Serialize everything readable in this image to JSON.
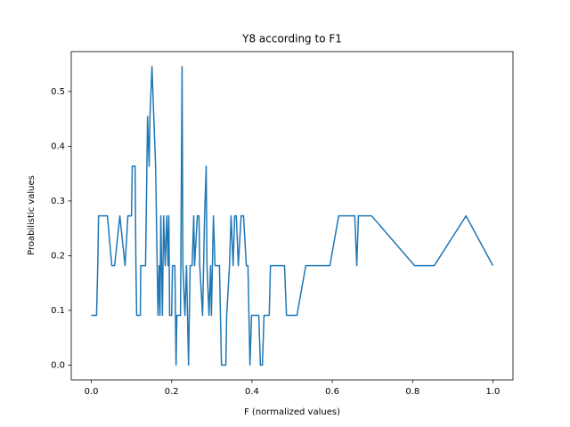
{
  "chart_data": {
    "type": "line",
    "title": "Y8 according to F1",
    "x_label": "F (normalized values)",
    "y_label": "Proabilistic values",
    "xlim": [
      -0.05,
      1.05
    ],
    "ylim": [
      -0.027,
      0.573
    ],
    "xticks": [
      {
        "value": 0,
        "label": "0.0"
      },
      0.2,
      0.4,
      0.6,
      0.8,
      {
        "value": 1,
        "label": "1.0"
      }
    ],
    "yticks": [
      {
        "value": 0,
        "label": "0.0"
      },
      0.1,
      0.2,
      0.3,
      0.4,
      0.5
    ],
    "x": [
      0.0,
      0.013,
      0.016,
      0.018,
      0.04,
      0.051,
      0.058,
      0.071,
      0.084,
      0.091,
      0.1,
      0.102,
      0.109,
      0.111,
      0.113,
      0.122,
      0.123,
      0.135,
      0.14,
      0.144,
      0.146,
      0.151,
      0.16,
      0.164,
      0.166,
      0.169,
      0.171,
      0.173,
      0.177,
      0.18,
      0.184,
      0.188,
      0.191,
      0.193,
      0.195,
      0.2,
      0.202,
      0.208,
      0.211,
      0.213,
      0.222,
      0.226,
      0.228,
      0.233,
      0.237,
      0.242,
      0.246,
      0.251,
      0.255,
      0.257,
      0.264,
      0.268,
      0.27,
      0.277,
      0.282,
      0.286,
      0.288,
      0.293,
      0.297,
      0.299,
      0.304,
      0.308,
      0.319,
      0.324,
      0.335,
      0.337,
      0.344,
      0.348,
      0.353,
      0.357,
      0.361,
      0.366,
      0.373,
      0.379,
      0.386,
      0.39,
      0.395,
      0.399,
      0.417,
      0.421,
      0.426,
      0.43,
      0.443,
      0.446,
      0.481,
      0.486,
      0.512,
      0.534,
      0.594,
      0.616,
      0.656,
      0.661,
      0.665,
      0.698,
      0.805,
      0.854,
      0.933,
      1.0
    ],
    "series": [
      {
        "color": "#1f77b4",
        "values": [
          0.0909,
          0.0909,
          0.1818,
          0.2727,
          0.2727,
          0.1818,
          0.1818,
          0.2727,
          0.1818,
          0.2727,
          0.2727,
          0.3636,
          0.3636,
          0.1818,
          0.0909,
          0.0909,
          0.1818,
          0.1818,
          0.4545,
          0.3636,
          0.4545,
          0.5455,
          0.3636,
          0.1818,
          0.0909,
          0.1818,
          0.0909,
          0.2727,
          0.0909,
          0.2727,
          0.1818,
          0.2727,
          0.1818,
          0.2727,
          0.0909,
          0.0909,
          0.1818,
          0.1818,
          0.0,
          0.0909,
          0.0909,
          0.5455,
          0.1818,
          0.0909,
          0.1818,
          0.0,
          0.1818,
          0.1818,
          0.2727,
          0.1818,
          0.2727,
          0.2727,
          0.1818,
          0.0909,
          0.2727,
          0.3636,
          0.1818,
          0.0909,
          0.1818,
          0.0909,
          0.2727,
          0.1818,
          0.1818,
          0.0,
          0.0,
          0.0909,
          0.1818,
          0.2727,
          0.1818,
          0.2727,
          0.2727,
          0.1818,
          0.2727,
          0.2727,
          0.1818,
          0.1818,
          0.0,
          0.0909,
          0.0909,
          0.0,
          0.0,
          0.0909,
          0.0909,
          0.1818,
          0.1818,
          0.0909,
          0.0909,
          0.1818,
          0.1818,
          0.2727,
          0.2727,
          0.1818,
          0.2727,
          0.2727,
          0.1818,
          0.1818,
          0.2727,
          0.1818
        ]
      }
    ]
  }
}
